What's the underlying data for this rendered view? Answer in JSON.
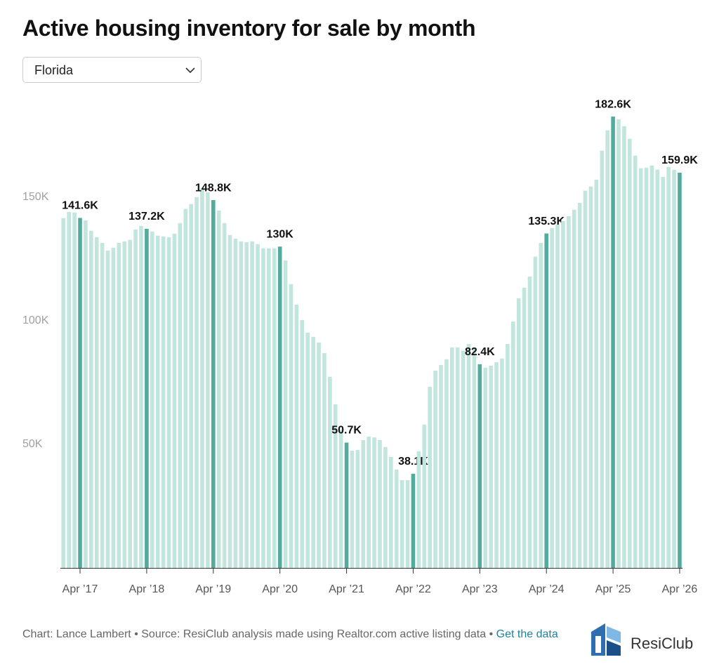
{
  "title": "Active housing inventory for sale by month",
  "controls": {
    "dropdown": "Florida"
  },
  "footer": {
    "credit": "Chart: Lance Lambert • Source: ResiClub analysis made using Realtor.com active listing data •",
    "link": "Get the data"
  },
  "logo": "ResiClub",
  "chart_data": {
    "type": "bar",
    "color": "#c2e5de",
    "highlight_color": "#52ab9c",
    "categories": [
      null,
      null,
      null,
      "Apr ’17",
      null,
      null,
      null,
      null,
      null,
      null,
      null,
      null,
      null,
      null,
      null,
      "Apr ’18",
      null,
      null,
      null,
      null,
      null,
      null,
      null,
      null,
      null,
      null,
      null,
      "Apr ’19",
      null,
      null,
      null,
      null,
      null,
      null,
      null,
      null,
      null,
      null,
      null,
      "Apr ’20",
      null,
      null,
      null,
      null,
      null,
      null,
      null,
      null,
      null,
      null,
      null,
      "Apr ’21",
      null,
      null,
      null,
      null,
      null,
      null,
      null,
      null,
      null,
      null,
      null,
      "Apr ’22",
      null,
      null,
      null,
      null,
      null,
      null,
      null,
      null,
      null,
      null,
      null,
      "Apr ’23",
      null,
      null,
      null,
      null,
      null,
      null,
      null,
      null,
      null,
      null,
      null,
      "Apr ’24",
      null,
      null,
      null,
      null,
      null,
      null,
      null,
      null,
      null,
      null,
      null,
      "Apr ’25",
      null,
      null,
      null,
      null,
      null,
      null,
      null,
      null,
      null,
      null,
      null,
      "Apr ’26"
    ],
    "values": [
      141500,
      144000,
      143800,
      141600,
      140600,
      136400,
      133800,
      131500,
      128400,
      129500,
      131500,
      132100,
      132700,
      136900,
      138400,
      137200,
      136100,
      134400,
      134100,
      133800,
      135200,
      139500,
      145200,
      147200,
      150000,
      153700,
      152000,
      148800,
      144600,
      139500,
      134700,
      133200,
      132100,
      131800,
      132100,
      131000,
      129300,
      129300,
      129300,
      130000,
      124400,
      114800,
      106500,
      100300,
      95200,
      93500,
      91200,
      86900,
      77300,
      66200,
      56000,
      50700,
      47400,
      47700,
      51700,
      53100,
      52800,
      51700,
      48900,
      44900,
      39800,
      35500,
      35500,
      38100,
      47200,
      58000,
      73300,
      79800,
      82100,
      84400,
      89200,
      89200,
      87800,
      90600,
      89200,
      82400,
      81000,
      81800,
      83200,
      84700,
      90600,
      99700,
      109100,
      113400,
      117900,
      125900,
      131500,
      135300,
      137500,
      138900,
      140300,
      142300,
      144900,
      147700,
      152600,
      154300,
      157100,
      168800,
      177000,
      182600,
      181500,
      178700,
      173600,
      166800,
      161700,
      161900,
      162800,
      161100,
      158200,
      162200,
      161100,
      159900
    ],
    "value_labels": [
      null,
      null,
      null,
      "141.6K",
      null,
      null,
      null,
      null,
      null,
      null,
      null,
      null,
      null,
      null,
      null,
      "137.2K",
      null,
      null,
      null,
      null,
      null,
      null,
      null,
      null,
      null,
      null,
      null,
      "148.8K",
      null,
      null,
      null,
      null,
      null,
      null,
      null,
      null,
      null,
      null,
      null,
      "130K",
      null,
      null,
      null,
      null,
      null,
      null,
      null,
      null,
      null,
      null,
      null,
      "50.7K",
      null,
      null,
      null,
      null,
      null,
      null,
      null,
      null,
      null,
      null,
      null,
      "38.1K",
      null,
      null,
      null,
      null,
      null,
      null,
      null,
      null,
      null,
      null,
      null,
      "82.4K",
      null,
      null,
      null,
      null,
      null,
      null,
      null,
      null,
      null,
      null,
      null,
      "135.3K",
      null,
      null,
      null,
      null,
      null,
      null,
      null,
      null,
      null,
      null,
      null,
      "182.6K",
      null,
      null,
      null,
      null,
      null,
      null,
      null,
      null,
      null,
      null,
      null,
      "159.9K"
    ],
    "ylim": [
      0,
      190000
    ],
    "yticks": [
      {
        "value": 50000,
        "label": "50K"
      },
      {
        "value": 100000,
        "label": "100K"
      },
      {
        "value": 150000,
        "label": "150K"
      }
    ],
    "grid": false
  }
}
